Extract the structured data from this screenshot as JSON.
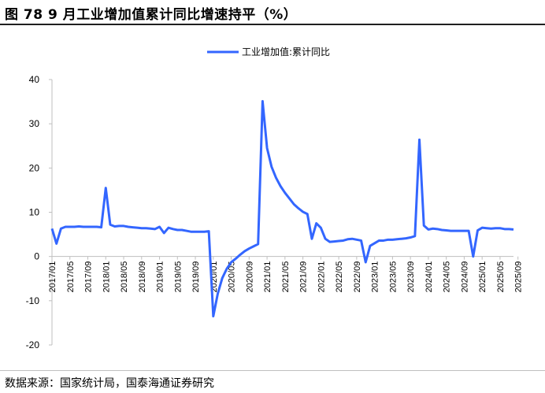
{
  "header": {
    "title": "图 78 9 月工业增加值累计同比增速持平（%）"
  },
  "footer": {
    "source": "数据来源：国家统计局，国泰海通证券研究"
  },
  "chart_data": {
    "type": "line",
    "legend_position": "top-center",
    "grid": false,
    "ylim": [
      -20,
      40
    ],
    "yticks": [
      "40",
      "30",
      "20",
      "10",
      "0",
      "-10",
      "-20"
    ],
    "ytick_values": [
      40,
      30,
      20,
      10,
      0,
      -10,
      -20
    ],
    "xticks": [
      "2017/01",
      "2017/05",
      "2017/09",
      "2018/01",
      "2018/05",
      "2018/09",
      "2019/01",
      "2019/05",
      "2019/09",
      "2020/01",
      "2020/05",
      "2020/09",
      "2021/01",
      "2021/05",
      "2021/09",
      "2022/01",
      "2022/05",
      "2022/09",
      "2023/01",
      "2023/05",
      "2023/09",
      "2024/01",
      "2024/05",
      "2024/09",
      "2025/01",
      "2025/05",
      "2025/09"
    ],
    "x_start": "2017/01",
    "x_end": "2025/09",
    "series": [
      {
        "name": "工业增加值:累计同比",
        "color": "#3366ff",
        "values": [
          6.3,
          2.9,
          6.3,
          6.7,
          6.7,
          6.7,
          6.8,
          6.7,
          6.7,
          6.7,
          6.7,
          6.6,
          15.5,
          7.2,
          6.8,
          6.9,
          6.9,
          6.7,
          6.6,
          6.5,
          6.4,
          6.4,
          6.3,
          6.2,
          6.7,
          5.3,
          6.5,
          6.2,
          6.0,
          6.0,
          5.8,
          5.6,
          5.6,
          5.6,
          5.6,
          5.7,
          -13.5,
          -8.4,
          -4.9,
          -2.8,
          -1.3,
          -0.5,
          0.4,
          1.2,
          1.8,
          2.3,
          2.8,
          35.1,
          24.5,
          20.3,
          17.8,
          15.9,
          14.4,
          13.1,
          11.8,
          10.9,
          10.1,
          9.6,
          4.0,
          7.5,
          6.5,
          4.0,
          3.3,
          3.4,
          3.5,
          3.6,
          3.9,
          4.0,
          3.8,
          3.6,
          -1.3,
          2.4,
          3.0,
          3.6,
          3.6,
          3.8,
          3.8,
          3.9,
          4.0,
          4.1,
          4.3,
          4.6,
          26.4,
          7.0,
          6.1,
          6.3,
          6.2,
          6.0,
          5.9,
          5.8,
          5.8,
          5.8,
          5.8,
          5.8,
          0.0,
          5.9,
          6.5,
          6.4,
          6.3,
          6.4,
          6.4,
          6.2,
          6.2,
          6.1
        ]
      }
    ]
  }
}
